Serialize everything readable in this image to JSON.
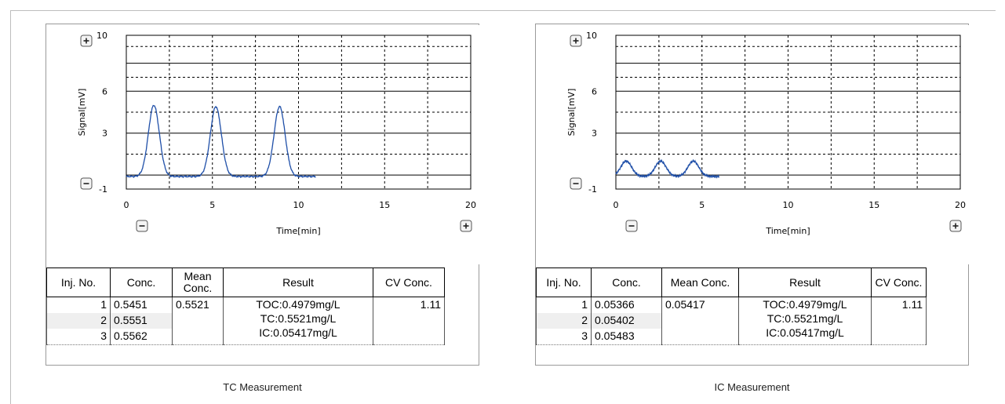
{
  "panels": [
    {
      "caption": "TC Measurement",
      "chart_data": {
        "type": "line",
        "xlabel": "Time[min]",
        "ylabel": "Signal[mV]",
        "xlim": [
          0,
          20
        ],
        "ylim": [
          -1,
          10
        ],
        "xticks": [
          "0",
          "5",
          "10",
          "15",
          "20"
        ],
        "yticks": [
          "10",
          "6",
          "3",
          "-1"
        ],
        "grid": true,
        "series_color": "#1f4fa8",
        "peaks": [
          {
            "center": 1.6,
            "height": 5.0
          },
          {
            "center": 5.2,
            "height": 4.9
          },
          {
            "center": 8.9,
            "height": 4.9
          }
        ],
        "x_end": 11.0,
        "baseline": -0.1
      },
      "table": {
        "headers": [
          "Inj. No.",
          "Conc.",
          "Mean Conc.",
          "Result",
          "CV Conc."
        ],
        "rows": [
          {
            "inj": "1",
            "conc": "0.5451"
          },
          {
            "inj": "2",
            "conc": "0.5551"
          },
          {
            "inj": "3",
            "conc": "0.5562"
          }
        ],
        "mean": "0.5521",
        "result_lines": [
          "TOC:0.4979mg/L",
          "TC:0.5521mg/L",
          "IC:0.05417mg/L"
        ],
        "cv": "1.11"
      }
    },
    {
      "caption": "IC Measurement",
      "chart_data": {
        "type": "line",
        "xlabel": "Time[min]",
        "ylabel": "Signal[mV]",
        "xlim": [
          0,
          20
        ],
        "ylim": [
          -1,
          10
        ],
        "xticks": [
          "0",
          "5",
          "10",
          "15",
          "20"
        ],
        "yticks": [
          "10",
          "6",
          "3",
          "-1"
        ],
        "grid": true,
        "series_color": "#1f4fa8",
        "peaks": [
          {
            "center": 0.6,
            "height": 1.0
          },
          {
            "center": 2.6,
            "height": 1.0
          },
          {
            "center": 4.5,
            "height": 1.0
          }
        ],
        "x_end": 6.0,
        "baseline": -0.1
      },
      "table": {
        "headers": [
          "Inj. No.",
          "Conc.",
          "Mean Conc.",
          "Result",
          "CV Conc."
        ],
        "rows": [
          {
            "inj": "1",
            "conc": "0.05366"
          },
          {
            "inj": "2",
            "conc": "0.05402"
          },
          {
            "inj": "3",
            "conc": "0.05483"
          }
        ],
        "mean": "0.05417",
        "result_lines": [
          "TOC:0.4979mg/L",
          "TC:0.5521mg/L",
          "IC:0.05417mg/L"
        ],
        "cv": "1.11"
      }
    }
  ],
  "icons": {
    "zoom_in": "plus-icon",
    "zoom_out": "minus-icon"
  }
}
